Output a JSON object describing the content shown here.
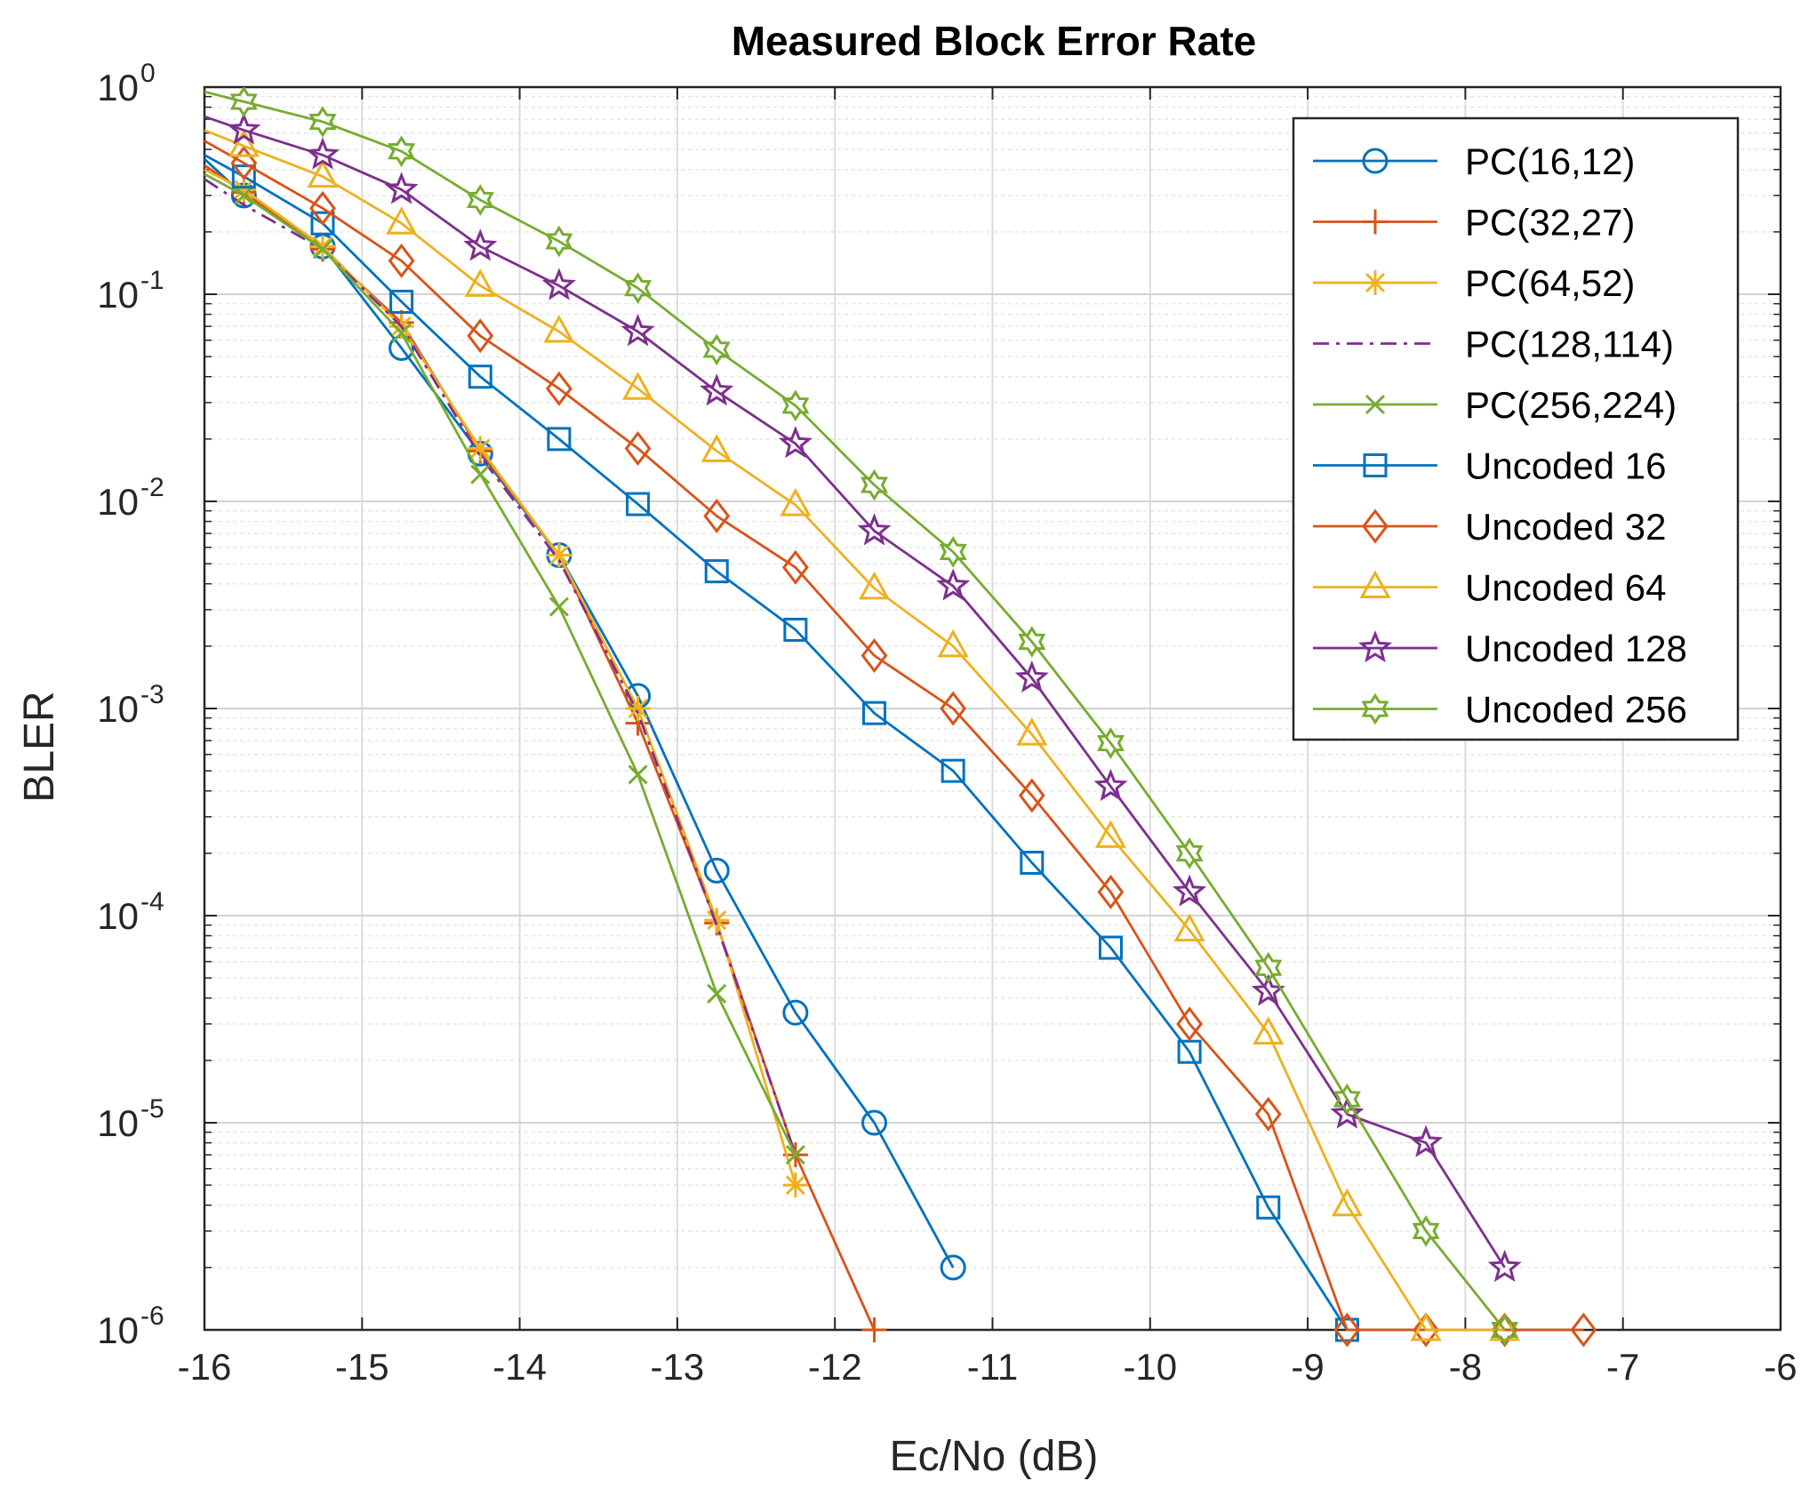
{
  "chart_data": {
    "type": "line",
    "title": "Measured Block Error Rate",
    "xlabel": "Ec/No (dB)",
    "ylabel": "BLER",
    "xlim": [
      -16,
      -6
    ],
    "ylim_exponent": [
      -6,
      0
    ],
    "y_scale": "log",
    "x_ticks": [
      -16,
      -15,
      -14,
      -13,
      -12,
      -11,
      -10,
      -9,
      -8,
      -7,
      -6
    ],
    "x_tick_labels": [
      "-16",
      "-15",
      "-14",
      "-13",
      "-12",
      "-11",
      "-10",
      "-9",
      "-8",
      "-7",
      "-6"
    ],
    "y_tick_base": "10",
    "y_tick_exponents": [
      "0",
      "-1",
      "-2",
      "-3",
      "-4",
      "-5",
      "-6"
    ],
    "grid": true,
    "legend_position": "top-right",
    "series": [
      {
        "name": "PC(16,12)",
        "color": "#0072BD",
        "marker": "circle",
        "dash": "solid",
        "x": [
          -16,
          -15.75,
          -15.25,
          -14.75,
          -14.25,
          -13.75,
          -13.25,
          -12.75,
          -12.25,
          -11.75,
          -11.25
        ],
        "y": [
          0.45,
          0.3,
          0.17,
          0.055,
          0.017,
          0.0055,
          0.00115,
          0.000165,
          3.4e-05,
          1e-05,
          2e-06
        ]
      },
      {
        "name": "PC(32,27)",
        "color": "#D95319",
        "marker": "plus",
        "dash": "solid",
        "x": [
          -16,
          -15.75,
          -15.25,
          -14.75,
          -14.25,
          -13.75,
          -13.25,
          -12.75,
          -12.25,
          -11.75
        ],
        "y": [
          0.42,
          0.31,
          0.165,
          0.073,
          0.0175,
          0.0055,
          0.00085,
          9.2e-05,
          7e-06,
          1e-06
        ]
      },
      {
        "name": "PC(64,52)",
        "color": "#EDB120",
        "marker": "asterisk",
        "dash": "solid",
        "x": [
          -16,
          -15.75,
          -15.25,
          -14.75,
          -14.25,
          -13.75,
          -13.25,
          -12.75,
          -12.25
        ],
        "y": [
          0.4,
          0.32,
          0.17,
          0.07,
          0.018,
          0.0055,
          0.001,
          9.5e-05,
          5e-06
        ]
      },
      {
        "name": "PC(128,114)",
        "color": "#7E2F8E",
        "marker": "none",
        "dash": "dashdot",
        "x": [
          -16,
          -15.75,
          -15.25,
          -14.75,
          -14.25,
          -13.75,
          -13.25,
          -12.75,
          -12.25
        ],
        "y": [
          0.36,
          0.27,
          0.165,
          0.07,
          0.0165,
          0.0052,
          0.00095,
          9e-05,
          7e-06
        ]
      },
      {
        "name": "PC(256,224)",
        "color": "#77AC30",
        "marker": "x",
        "dash": "solid",
        "x": [
          -16,
          -15.75,
          -15.25,
          -14.75,
          -14.25,
          -13.75,
          -13.25,
          -12.75,
          -12.25
        ],
        "y": [
          0.38,
          0.3,
          0.165,
          0.065,
          0.0135,
          0.0031,
          0.00048,
          4.2e-05,
          7e-06
        ]
      },
      {
        "name": "Uncoded 16",
        "color": "#0072BD",
        "marker": "square",
        "dash": "solid",
        "x": [
          -16,
          -15.75,
          -15.25,
          -14.75,
          -14.25,
          -13.75,
          -13.25,
          -12.75,
          -12.25,
          -11.75,
          -11.25,
          -10.75,
          -10.25,
          -9.75,
          -9.25,
          -8.75
        ],
        "y": [
          0.47,
          0.37,
          0.22,
          0.092,
          0.04,
          0.02,
          0.0097,
          0.0046,
          0.0024,
          0.00095,
          0.0005,
          0.00018,
          7e-05,
          2.2e-05,
          3.9e-06,
          1e-06
        ]
      },
      {
        "name": "Uncoded 32",
        "color": "#D95319",
        "marker": "diamond",
        "dash": "solid",
        "x": [
          -16,
          -15.75,
          -15.25,
          -14.75,
          -14.25,
          -13.75,
          -13.25,
          -12.75,
          -12.25,
          -11.75,
          -11.25,
          -10.75,
          -10.25,
          -9.75,
          -9.25,
          -8.75,
          -8.25,
          -7.75,
          -7.25
        ],
        "y": [
          0.55,
          0.43,
          0.26,
          0.145,
          0.063,
          0.035,
          0.018,
          0.0085,
          0.0048,
          0.0018,
          0.001,
          0.00038,
          0.00013,
          3e-05,
          1.1e-05,
          1e-06,
          1e-06,
          1e-06,
          1e-06
        ]
      },
      {
        "name": "Uncoded 64",
        "color": "#EDB120",
        "marker": "triangle",
        "dash": "solid",
        "x": [
          -16,
          -15.75,
          -15.25,
          -14.75,
          -14.25,
          -13.75,
          -13.25,
          -12.75,
          -12.25,
          -11.75,
          -11.25,
          -10.75,
          -10.25,
          -9.75,
          -9.25,
          -8.75,
          -8.25,
          -7.75
        ],
        "y": [
          0.62,
          0.52,
          0.37,
          0.22,
          0.11,
          0.066,
          0.035,
          0.0175,
          0.0096,
          0.0038,
          0.002,
          0.00075,
          0.00024,
          8.5e-05,
          2.7e-05,
          4e-06,
          1e-06,
          1e-06
        ]
      },
      {
        "name": "Uncoded 128",
        "color": "#7E2F8E",
        "marker": "pentagram",
        "dash": "solid",
        "x": [
          -16,
          -15.75,
          -15.25,
          -14.75,
          -14.25,
          -13.75,
          -13.25,
          -12.75,
          -12.25,
          -11.75,
          -11.25,
          -10.75,
          -10.25,
          -9.75,
          -9.25,
          -8.75,
          -8.25,
          -7.75
        ],
        "y": [
          0.72,
          0.62,
          0.47,
          0.32,
          0.17,
          0.11,
          0.066,
          0.034,
          0.019,
          0.0072,
          0.0039,
          0.0014,
          0.00042,
          0.00013,
          4.3e-05,
          1.1e-05,
          8e-06,
          2e-06
        ]
      },
      {
        "name": "Uncoded 256",
        "color": "#77AC30",
        "marker": "hexagram",
        "dash": "solid",
        "x": [
          -16,
          -15.75,
          -15.25,
          -14.75,
          -14.25,
          -13.75,
          -13.25,
          -12.75,
          -12.25,
          -11.75,
          -11.25,
          -10.75,
          -10.25,
          -9.75,
          -9.25,
          -8.75,
          -8.25,
          -7.75
        ],
        "y": [
          0.95,
          0.85,
          0.68,
          0.49,
          0.285,
          0.18,
          0.107,
          0.054,
          0.029,
          0.012,
          0.0057,
          0.0021,
          0.00068,
          0.0002,
          5.6e-05,
          1.3e-05,
          3e-06,
          1e-06
        ]
      }
    ]
  }
}
